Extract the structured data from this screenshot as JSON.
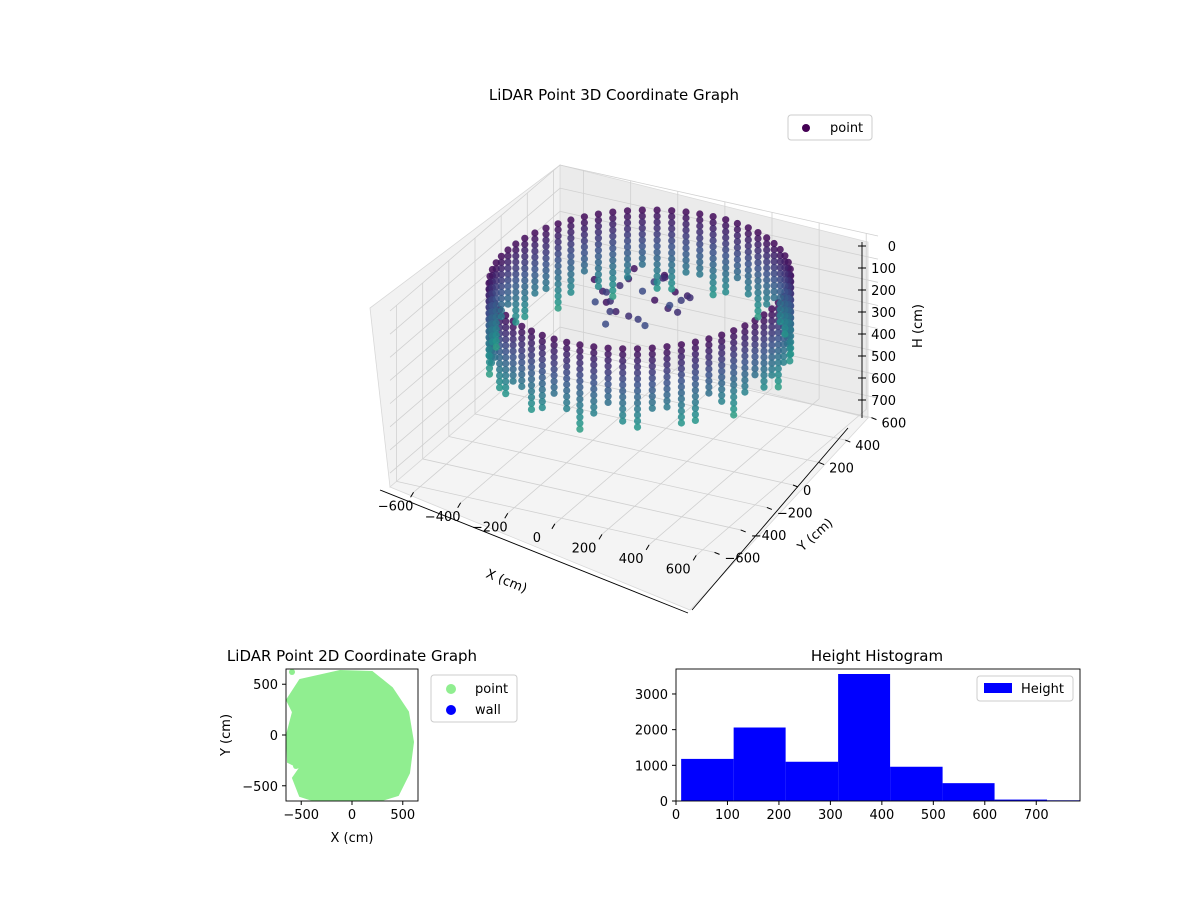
{
  "chart_data": [
    {
      "type": "scatter",
      "projection": "3d",
      "title": "LiDAR Point 3D Coordinate Graph",
      "xlabel": "X (cm)",
      "ylabel": "Y (cm)",
      "zlabel": "H (cm)",
      "xlim": [
        -700,
        650
      ],
      "ylim": [
        -650,
        650
      ],
      "zlim": [
        0,
        760
      ],
      "z_inverted": true,
      "x_ticks": [
        -600,
        -400,
        -200,
        0,
        200,
        400,
        600
      ],
      "y_ticks": [
        -600,
        -400,
        -200,
        0,
        200,
        400,
        600
      ],
      "z_ticks": [
        0,
        100,
        200,
        300,
        400,
        500,
        600,
        700
      ],
      "grid": true,
      "legend": {
        "entries": [
          "point"
        ],
        "placement": "top-right"
      },
      "colormap": "viridis",
      "series": [
        {
          "name": "point",
          "color": "#440154",
          "description_shape": "ring of vertical point columns, radius about 550, heights 0-700"
        }
      ]
    },
    {
      "type": "scatter",
      "title": "LiDAR Point 2D Coordinate Graph",
      "xlabel": "X (cm)",
      "ylabel": "Y (cm)",
      "xlim": [
        -650,
        650
      ],
      "ylim": [
        -650,
        650
      ],
      "x_ticks": [
        -500,
        0,
        500
      ],
      "y_ticks": [
        -500,
        0,
        500
      ],
      "legend": {
        "entries": [
          "point",
          "wall"
        ],
        "placement": "outside-right"
      },
      "series": [
        {
          "name": "point",
          "color": "#90ee90"
        },
        {
          "name": "wall",
          "color": "#0000ff"
        }
      ]
    },
    {
      "type": "bar",
      "title": "Height Histogram",
      "xlim": [
        0,
        785
      ],
      "ylim": [
        0,
        3700
      ],
      "x_ticks": [
        0,
        100,
        200,
        300,
        400,
        500,
        600,
        700
      ],
      "y_ticks": [
        0,
        1000,
        2000,
        3000
      ],
      "legend": {
        "entries": [
          "Height"
        ],
        "placement": "top-right"
      },
      "bins": [
        {
          "x0": 10,
          "x1": 112,
          "value": 1180
        },
        {
          "x0": 112,
          "x1": 213,
          "value": 2060
        },
        {
          "x0": 213,
          "x1": 315,
          "value": 1100
        },
        {
          "x0": 315,
          "x1": 416,
          "value": 3560
        },
        {
          "x0": 416,
          "x1": 518,
          "value": 960
        },
        {
          "x0": 518,
          "x1": 619,
          "value": 500
        },
        {
          "x0": 619,
          "x1": 721,
          "value": 40
        },
        {
          "x0": 721,
          "x1": 822,
          "value": 20
        }
      ],
      "series": [
        {
          "name": "Height",
          "color": "#0000ff"
        }
      ]
    }
  ]
}
